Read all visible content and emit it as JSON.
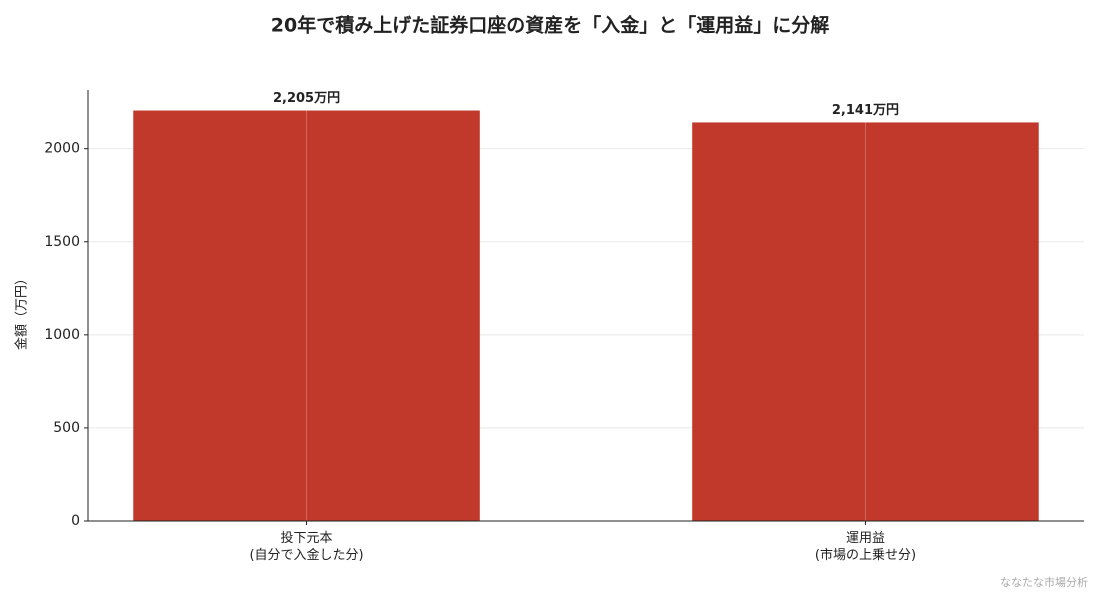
{
  "chart_data": {
    "type": "bar",
    "title": "20年で積み上げた証券口座の資産を「入金」と「運用益」に分解",
    "y_label": "金額（万円）",
    "categories": [
      "投下元本\n(自分で入金した分)",
      "運用益\n(市場の上乗せ分)"
    ],
    "values": [
      2205,
      2141
    ],
    "value_labels": [
      "2,205万円",
      "2,141万円"
    ],
    "color": "#c0392b",
    "ylim": [
      0,
      2315.25
    ],
    "yticks": [
      0,
      500,
      1000,
      1500,
      2000
    ],
    "grid": true,
    "watermark": "ななたな市場分析"
  }
}
